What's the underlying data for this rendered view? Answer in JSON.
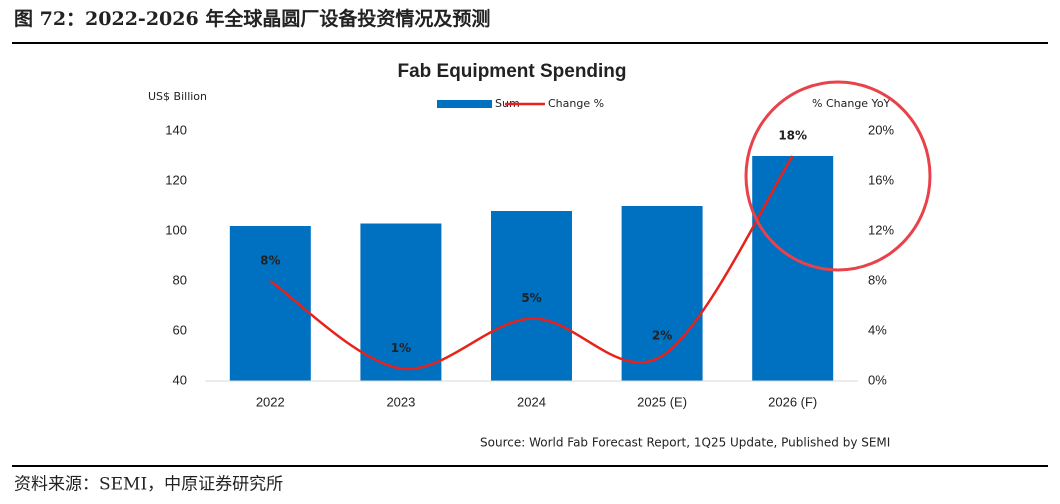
{
  "header": {
    "title": "图 72：2022-2026 年全球晶圆厂设备投资情况及预测"
  },
  "chart_data": {
    "type": "bar",
    "title": "Fab Equipment Spending",
    "y_label": "US$ Billion",
    "y2_label": "% Change YoY",
    "categories": [
      "2022",
      "2023",
      "2024",
      "2025 (E)",
      "2026 (F)"
    ],
    "series": [
      {
        "name": "Sum",
        "color": "#0070c0",
        "values": [
          102,
          103,
          108,
          110,
          130
        ]
      },
      {
        "name": "Change %",
        "color": "#e8211a",
        "type": "line",
        "axis": "y2",
        "values": [
          8,
          1,
          5,
          2,
          18
        ],
        "value_labels": [
          "8%",
          "1%",
          "5%",
          "2%",
          "18%"
        ]
      }
    ],
    "ylim": [
      40,
      140
    ],
    "yticks": [
      40,
      60,
      80,
      100,
      120,
      140
    ],
    "y2lim": [
      0,
      20
    ],
    "y2ticks": [
      {
        "value": 0,
        "label": "0%"
      },
      {
        "value": 4,
        "label": "4%"
      },
      {
        "value": 8,
        "label": "8%"
      },
      {
        "value": 12,
        "label": "12%"
      },
      {
        "value": 16,
        "label": "16%"
      },
      {
        "value": 20,
        "label": "20%"
      }
    ],
    "note": "Source: World Fab Forecast Report, 1Q25 Update, Published by SEMI"
  },
  "footer": {
    "source": "资料来源：SEMI，中原证券研究所"
  }
}
